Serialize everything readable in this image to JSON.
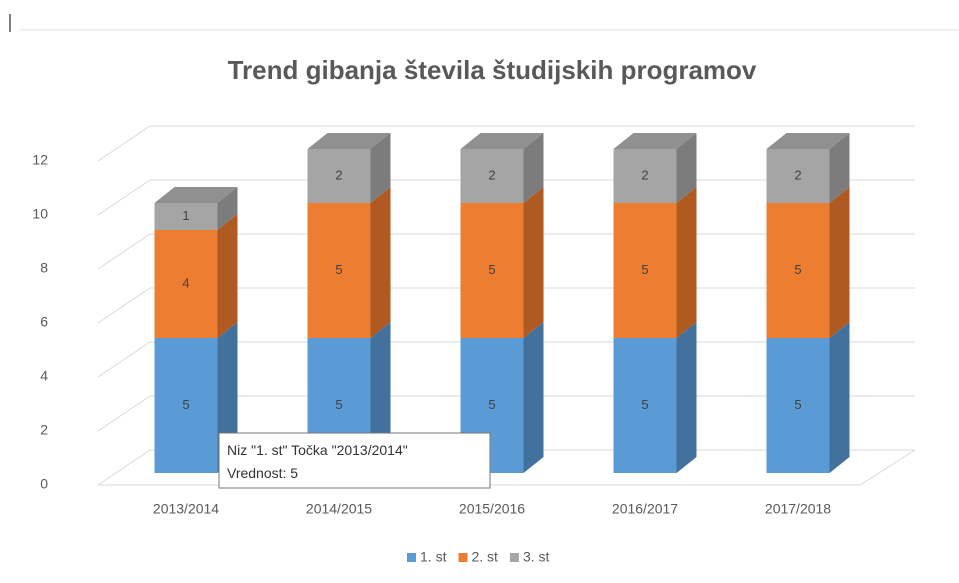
{
  "chart_data": {
    "type": "bar3d_stacked",
    "title": "Trend gibanja števila študijskih programov",
    "categories": [
      "2013/2014",
      "2014/2015",
      "2015/2016",
      "2016/2017",
      "2017/2018"
    ],
    "series": [
      {
        "name": "1. st",
        "color": "#5b9bd5",
        "side": "#41719c",
        "values": [
          5,
          5,
          5,
          5,
          5
        ]
      },
      {
        "name": "2. st",
        "color": "#ed7d31",
        "side": "#ae5a21",
        "values": [
          4,
          5,
          5,
          5,
          5
        ]
      },
      {
        "name": "3. st",
        "color": "#a5a5a5",
        "side": "#7c7c7c",
        "values": [
          1,
          2,
          2,
          2,
          2
        ]
      }
    ],
    "ylim": [
      0,
      12
    ],
    "yticks": [
      0,
      2,
      4,
      6,
      8,
      10,
      12
    ],
    "grid": true,
    "legend": "bottom",
    "tooltip": {
      "title": "Niz \"1. st\" Točka \"2013/2014\"",
      "value_label": "Vrednost: 5"
    }
  }
}
